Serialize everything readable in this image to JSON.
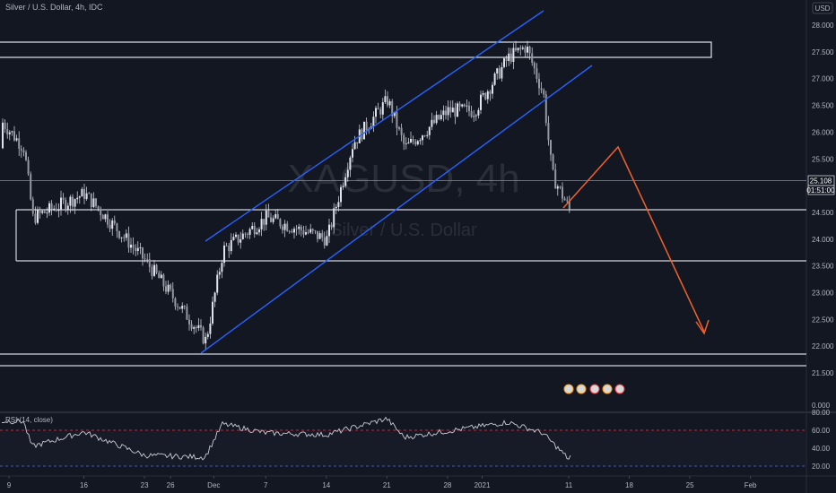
{
  "header": {
    "title": "Silver / U.S. Dollar, 4h, IDC",
    "currency": "USD"
  },
  "watermark": {
    "symbol": "XAGUSD, 4h",
    "name": "Silver / U.S. Dollar"
  },
  "price_axis": {
    "ticks": [
      "28.000",
      "27.500",
      "27.000",
      "26.500",
      "26.000",
      "25.500",
      "25.000",
      "24.500",
      "24.000",
      "23.500",
      "23.000",
      "22.500",
      "22.000",
      "21.500"
    ],
    "current_price": "25.108",
    "countdown": "01:51:00"
  },
  "rsi": {
    "label": "RSI (14, close)",
    "ticks": [
      "80.00",
      "60.00",
      "40.00",
      "20.00"
    ],
    "zero_label": "0.000"
  },
  "time_axis": {
    "labels": [
      "9",
      "16",
      "23",
      "26",
      "Dec",
      "7",
      "14",
      "21",
      "28",
      "2021",
      "11",
      "18",
      "25",
      "Feb"
    ]
  },
  "colors": {
    "background": "#131722",
    "candle": "#e0e3eb",
    "channel": "#2962ff",
    "projection": "#f7525f",
    "levels": "#d1d4dc",
    "rsi_line": "#c8cbd3",
    "rsi_upper": "#f23645",
    "rsi_lower": "#5d6bd6"
  },
  "chart_data": {
    "type": "candlestick",
    "symbol": "Silver / U.S. Dollar",
    "timeframe": "4h",
    "x_axis_labels": [
      "9",
      "16",
      "23",
      "26",
      "Dec",
      "7",
      "14",
      "21",
      "28",
      "2021",
      "11",
      "18",
      "25",
      "Feb"
    ],
    "y_range": [
      21.5,
      28.0
    ],
    "last_price": 25.108,
    "anchors": [
      {
        "date": "Nov 9",
        "price": 25.7
      },
      {
        "date": "Nov 10",
        "price": 24.4
      },
      {
        "date": "Nov 16",
        "price": 24.85
      },
      {
        "date": "Nov 23",
        "price": 23.6
      },
      {
        "date": "Nov 30",
        "price": 22.1
      },
      {
        "date": "Dec 2",
        "price": 23.8
      },
      {
        "date": "Dec 7",
        "price": 24.4
      },
      {
        "date": "Dec 14",
        "price": 24.0
      },
      {
        "date": "Dec 17",
        "price": 25.8
      },
      {
        "date": "Dec 21",
        "price": 26.6
      },
      {
        "date": "Dec 23",
        "price": 25.7
      },
      {
        "date": "Dec 28",
        "price": 26.4
      },
      {
        "date": "Dec 31",
        "price": 26.4
      },
      {
        "date": "Jan 4",
        "price": 27.4
      },
      {
        "date": "Jan 6",
        "price": 27.6
      },
      {
        "date": "Jan 8",
        "price": 26.7
      },
      {
        "date": "Jan 9",
        "price": 25.2
      },
      {
        "date": "Jan 11",
        "price": 24.55
      },
      {
        "date": "Jan 11",
        "price": 25.108
      }
    ],
    "horizontal_levels": [
      {
        "from": 27.6,
        "to": 27.35,
        "kind": "resistance-zone"
      },
      {
        "price": 25.108,
        "kind": "last-price"
      },
      {
        "price": 24.5,
        "kind": "support"
      },
      {
        "price": 23.55,
        "kind": "support"
      },
      {
        "price": 21.9,
        "kind": "support"
      },
      {
        "price": 21.65,
        "kind": "support"
      }
    ],
    "ascending_channel": {
      "upper": [
        {
          "date": "Nov 30",
          "price": 24.0
        },
        {
          "date": "Jan 6",
          "price": 28.3
        }
      ],
      "lower": [
        {
          "date": "Nov 30",
          "price": 21.85
        },
        {
          "date": "Jan 14",
          "price": 27.3
        }
      ]
    },
    "projection_path": [
      {
        "date": "Jan 11",
        "price": 24.55
      },
      {
        "date": "Jan 16",
        "price": 25.7
      },
      {
        "date": "Jan 25",
        "price": 22.35
      }
    ],
    "rsi_indicator": {
      "name": "RSI (14, close)",
      "ylim": [
        10,
        90
      ],
      "overbought": 70,
      "oversold": 30,
      "anchors": [
        {
          "date": "Nov 9",
          "value": 70
        },
        {
          "date": "Nov 10",
          "value": 42
        },
        {
          "date": "Nov 16",
          "value": 58
        },
        {
          "date": "Nov 23",
          "value": 32
        },
        {
          "date": "Nov 30",
          "value": 30
        },
        {
          "date": "Dec 2",
          "value": 67
        },
        {
          "date": "Dec 7",
          "value": 57
        },
        {
          "date": "Dec 14",
          "value": 55
        },
        {
          "date": "Dec 21",
          "value": 73
        },
        {
          "date": "Dec 23",
          "value": 52
        },
        {
          "date": "Dec 28",
          "value": 59
        },
        {
          "date": "Jan 4",
          "value": 69
        },
        {
          "date": "Jan 8",
          "value": 57
        },
        {
          "date": "Jan 11",
          "value": 28
        },
        {
          "date": "Jan 11",
          "value": 34
        }
      ]
    }
  }
}
